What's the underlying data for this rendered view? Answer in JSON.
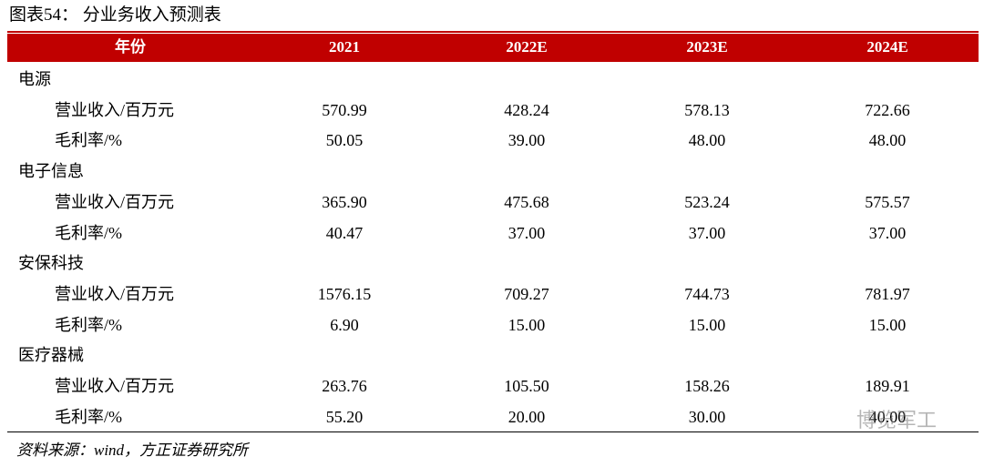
{
  "title": "图表54：  分业务收入预测表",
  "table": {
    "header": [
      "年份",
      "2021",
      "2022E",
      "2023E",
      "2024E"
    ],
    "sections": [
      {
        "name": "电源",
        "rows": [
          {
            "label": "营业收入/百万元",
            "values": [
              "570.99",
              "428.24",
              "578.13",
              "722.66"
            ]
          },
          {
            "label": "毛利率/%",
            "values": [
              "50.05",
              "39.00",
              "48.00",
              "48.00"
            ]
          }
        ]
      },
      {
        "name": "电子信息",
        "rows": [
          {
            "label": "营业收入/百万元",
            "values": [
              "365.90",
              "475.68",
              "523.24",
              "575.57"
            ]
          },
          {
            "label": "毛利率/%",
            "values": [
              "40.47",
              "37.00",
              "37.00",
              "37.00"
            ]
          }
        ]
      },
      {
        "name": "安保科技",
        "rows": [
          {
            "label": "营业收入/百万元",
            "values": [
              "1576.15",
              "709.27",
              "744.73",
              "781.97"
            ]
          },
          {
            "label": "毛利率/%",
            "values": [
              "6.90",
              "15.00",
              "15.00",
              "15.00"
            ]
          }
        ]
      },
      {
        "name": "医疗器械",
        "rows": [
          {
            "label": "营业收入/百万元",
            "values": [
              "263.76",
              "105.50",
              "158.26",
              "189.91"
            ]
          },
          {
            "label": "毛利率/%",
            "values": [
              "55.20",
              "20.00",
              "30.00",
              "40.00"
            ]
          }
        ]
      }
    ]
  },
  "source": "资料来源：wind，方正证券研究所",
  "watermark": "博览军工"
}
